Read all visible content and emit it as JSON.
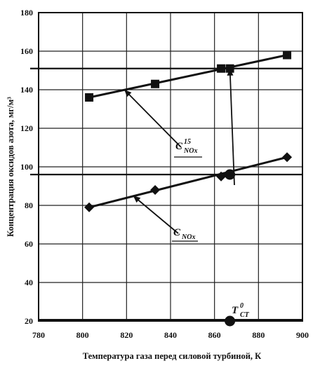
{
  "chart_data": {
    "type": "scatter",
    "title": "",
    "xlabel": "Температура газа перед силовой турбиной, К",
    "ylabel": "Концентрация оксидов азота, мг/м³",
    "xlim": [
      780,
      900
    ],
    "ylim": [
      20,
      180
    ],
    "x_ticks": [
      "780",
      "800",
      "820",
      "840",
      "860",
      "880",
      "900"
    ],
    "y_ticks": [
      "20",
      "40",
      "60",
      "80",
      "100",
      "120",
      "140",
      "160",
      "180"
    ],
    "grid": true,
    "legend": "none",
    "series": [
      {
        "name": "C15 NOx",
        "marker": "square",
        "points": [
          [
            803,
            136
          ],
          [
            833,
            143
          ],
          [
            863,
            151
          ],
          [
            867,
            151
          ],
          [
            893,
            158
          ]
        ],
        "fit_line": [
          [
            803,
            136
          ],
          [
            893,
            158
          ]
        ]
      },
      {
        "name": "C NOx",
        "marker": "diamond",
        "points": [
          [
            803,
            79
          ],
          [
            833,
            88
          ],
          [
            863,
            95
          ],
          [
            893,
            105
          ]
        ],
        "fit_line": [
          [
            803,
            79
          ],
          [
            893,
            105
          ]
        ]
      }
    ],
    "reference_lines": [
      {
        "axis": "y",
        "value": 151
      },
      {
        "axis": "y",
        "value": 96
      }
    ],
    "highlight_points": [
      [
        867,
        96
      ],
      [
        867,
        20
      ]
    ],
    "annotations": [
      {
        "base": "C",
        "superscript": "15",
        "subscript": "NOx",
        "series": "C15 NOx",
        "arrow_to": [
          819,
          140
        ]
      },
      {
        "base": "C",
        "superscript": "",
        "subscript": "NOx",
        "series": "C NOx",
        "arrow_to": [
          823,
          85
        ]
      },
      {
        "base": "T",
        "superscript": "0",
        "subscript": "CT",
        "series": "",
        "arrow_to": [
          867,
          151
        ]
      }
    ],
    "colors": {
      "line": "#111111",
      "background": "#ffffff"
    }
  }
}
